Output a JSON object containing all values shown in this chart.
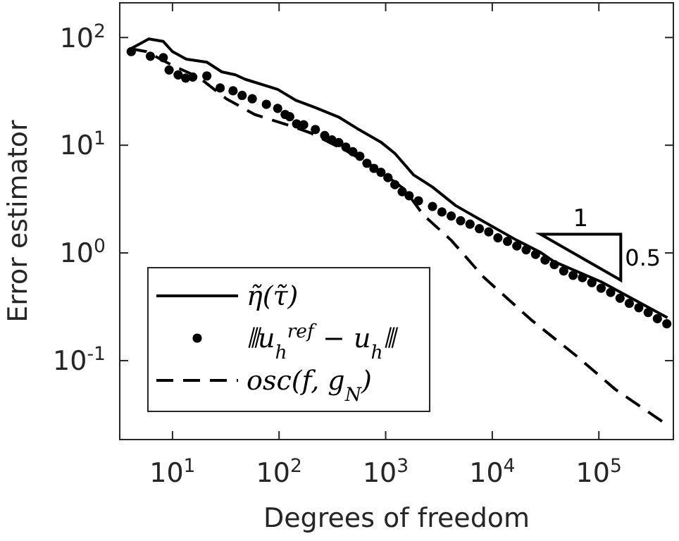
{
  "chart_data": {
    "type": "line",
    "xlabel": "Degrees of freedom",
    "ylabel": "Error estimator",
    "log": "xy",
    "xlim": [
      3.2,
      500000
    ],
    "ylim": [
      0.0185,
      210
    ],
    "xticks": [
      {
        "value": 10,
        "label": "10$^{1}$"
      },
      {
        "value": 100,
        "label": "10$^{2}$"
      },
      {
        "value": 1000,
        "label": "10$^{3}$"
      },
      {
        "value": 10000,
        "label": "10$^{4}$"
      },
      {
        "value": 100000,
        "label": "10$^{5}$"
      }
    ],
    "yticks": [
      {
        "value": 0.1,
        "label": "10$^{-1}$"
      },
      {
        "value": 1,
        "label": "10$^{0}$"
      },
      {
        "value": 10,
        "label": "10$^{1}$"
      },
      {
        "value": 100,
        "label": "10$^{2}$"
      }
    ],
    "grid": false,
    "legend": "bottom left",
    "annotations": [
      "1",
      "0.5"
    ],
    "series": [
      {
        "name": "η̃(τ̃)",
        "color": "#000000",
        "marker": "none",
        "line_style": "solid",
        "x": [
          4.0,
          6.0,
          8.2,
          10,
          13.5,
          21,
          29,
          39,
          48,
          97,
          145,
          218,
          361,
          540,
          900,
          1220,
          1830,
          2740,
          4540,
          8400,
          17000,
          28000,
          38000,
          105000,
          440000
        ],
        "values": [
          78,
          97,
          92,
          74,
          63,
          59,
          48,
          45,
          41,
          33,
          26,
          22.4,
          18.3,
          14.3,
          10.7,
          8.4,
          5.3,
          4.1,
          2.75,
          1.94,
          1.31,
          1.02,
          0.83,
          0.54,
          0.25
        ]
      },
      {
        "name": "⦀u$_{h}$$^{ref}$ − u$_{h}$⦀",
        "color": "#000000",
        "type": "scatter",
        "marker": "circle",
        "x": [
          4.1,
          6.2,
          8.2,
          9.3,
          11.3,
          13.3,
          15.5,
          21,
          28,
          37,
          45,
          56,
          76,
          97,
          114,
          126,
          146,
          170,
          219,
          268,
          313,
          363,
          423,
          492,
          573,
          667,
          776,
          903,
          1050,
          1220,
          1430,
          1660,
          2030,
          2750,
          3370,
          4120,
          5050,
          6180,
          7570,
          9270,
          11300,
          13900,
          17000,
          20800,
          25500,
          31300,
          38200,
          46800,
          57300,
          70200,
          85900,
          105000,
          129000,
          158000,
          193000,
          237000,
          290000,
          354000,
          434000
        ],
        "values": [
          74,
          67,
          65,
          50,
          45,
          42,
          43,
          44,
          34,
          32,
          29,
          27,
          24,
          22,
          19.3,
          18.4,
          15.8,
          15.5,
          14.0,
          12.3,
          11.2,
          10.6,
          9.6,
          8.7,
          7.9,
          6.8,
          6.1,
          5.6,
          5.0,
          4.3,
          3.7,
          3.4,
          3.05,
          2.7,
          2.4,
          2.2,
          1.99,
          1.85,
          1.68,
          1.57,
          1.38,
          1.28,
          1.16,
          1.07,
          0.97,
          0.86,
          0.78,
          0.68,
          0.62,
          0.59,
          0.53,
          0.47,
          0.43,
          0.38,
          0.34,
          0.31,
          0.28,
          0.245,
          0.22
        ]
      },
      {
        "name": "osc(f, g$_{N}$)",
        "color": "#000000",
        "marker": "none",
        "line_style": "dashed",
        "x": [
          4.0,
          5.7,
          10,
          17.5,
          32,
          59,
          119,
          198,
          444,
          816,
          1500,
          2250,
          4120,
          8380,
          23100,
          63400,
          143000,
          434000
        ],
        "values": [
          79,
          74,
          55,
          43,
          27,
          19.3,
          15.5,
          13.0,
          8.7,
          6.1,
          3.9,
          2.26,
          1.31,
          0.59,
          0.24,
          0.108,
          0.054,
          0.0255
        ]
      }
    ]
  }
}
